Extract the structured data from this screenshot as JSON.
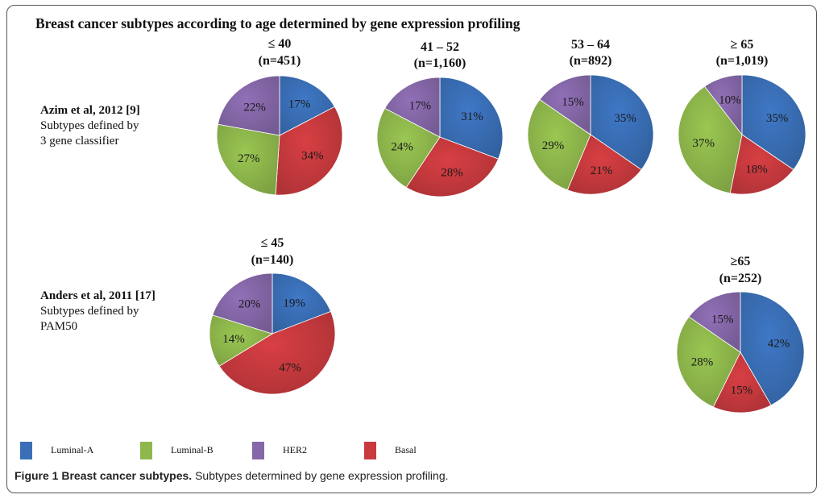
{
  "title": "Breast cancer subtypes according to age determined by gene expression profiling",
  "rows": [
    {
      "ref": "Azim et al, 2012 [9]",
      "desc1": "Subtypes defined by",
      "desc2": "3 gene classifier"
    },
    {
      "ref": "Anders et al, 2011 [17]",
      "desc1": "Subtypes defined by",
      "desc2": "PAM50"
    }
  ],
  "legend": [
    {
      "label": "Luminal-A",
      "color": "#3a6fb7"
    },
    {
      "label": "Luminal-B",
      "color": "#8fb84c"
    },
    {
      "label": "HER2",
      "color": "#8668a9"
    },
    {
      "label": "Basal",
      "color": "#c83a3e"
    }
  ],
  "caption": {
    "bold": "Figure 1 Breast cancer subtypes.",
    "text": " Subtypes determined by gene expression profiling."
  },
  "chart_data": [
    {
      "type": "pie",
      "study": "Azim et al, 2012 [9]",
      "age": "≤ 40",
      "n": "(n=451)",
      "categories": [
        "Luminal-A",
        "Basal",
        "Luminal-B",
        "HER2"
      ],
      "values": [
        17,
        34,
        27,
        22
      ],
      "labels": [
        "17%",
        "34%",
        "27%",
        "22%"
      ]
    },
    {
      "type": "pie",
      "study": "Azim et al, 2012 [9]",
      "age": "41 – 52",
      "n": "(n=1,160)",
      "categories": [
        "Luminal-A",
        "Basal",
        "Luminal-B",
        "HER2"
      ],
      "values": [
        31,
        28,
        24,
        17
      ],
      "labels": [
        "31%",
        "28%",
        "24%",
        "17%"
      ]
    },
    {
      "type": "pie",
      "study": "Azim et al, 2012 [9]",
      "age": "53 – 64",
      "n": "(n=892)",
      "categories": [
        "Luminal-A",
        "Basal",
        "Luminal-B",
        "HER2"
      ],
      "values": [
        35,
        21,
        29,
        15
      ],
      "labels": [
        "35%",
        "21%",
        "29%",
        "15%"
      ]
    },
    {
      "type": "pie",
      "study": "Azim et al, 2012 [9]",
      "age": "≥ 65",
      "n": "(n=1,019)",
      "categories": [
        "Luminal-A",
        "Basal",
        "Luminal-B",
        "HER2"
      ],
      "values": [
        35,
        18,
        37,
        10
      ],
      "labels": [
        "35%",
        "18%",
        "37%",
        "10%"
      ]
    },
    {
      "type": "pie",
      "study": "Anders et al, 2011 [17]",
      "age": "≤ 45",
      "n": "(n=140)",
      "categories": [
        "Luminal-A",
        "Basal",
        "Luminal-B",
        "HER2"
      ],
      "values": [
        19,
        47,
        14,
        20
      ],
      "labels": [
        "19%",
        "47%",
        "14%",
        "20%"
      ]
    },
    {
      "type": "pie",
      "study": "Anders et al, 2011 [17]",
      "age": "≥65",
      "n": "(n=252)",
      "categories": [
        "Luminal-A",
        "Basal",
        "Luminal-B",
        "HER2"
      ],
      "values": [
        42,
        15,
        28,
        15
      ],
      "labels": [
        "42%",
        "15%",
        "28%",
        "15%"
      ]
    }
  ]
}
